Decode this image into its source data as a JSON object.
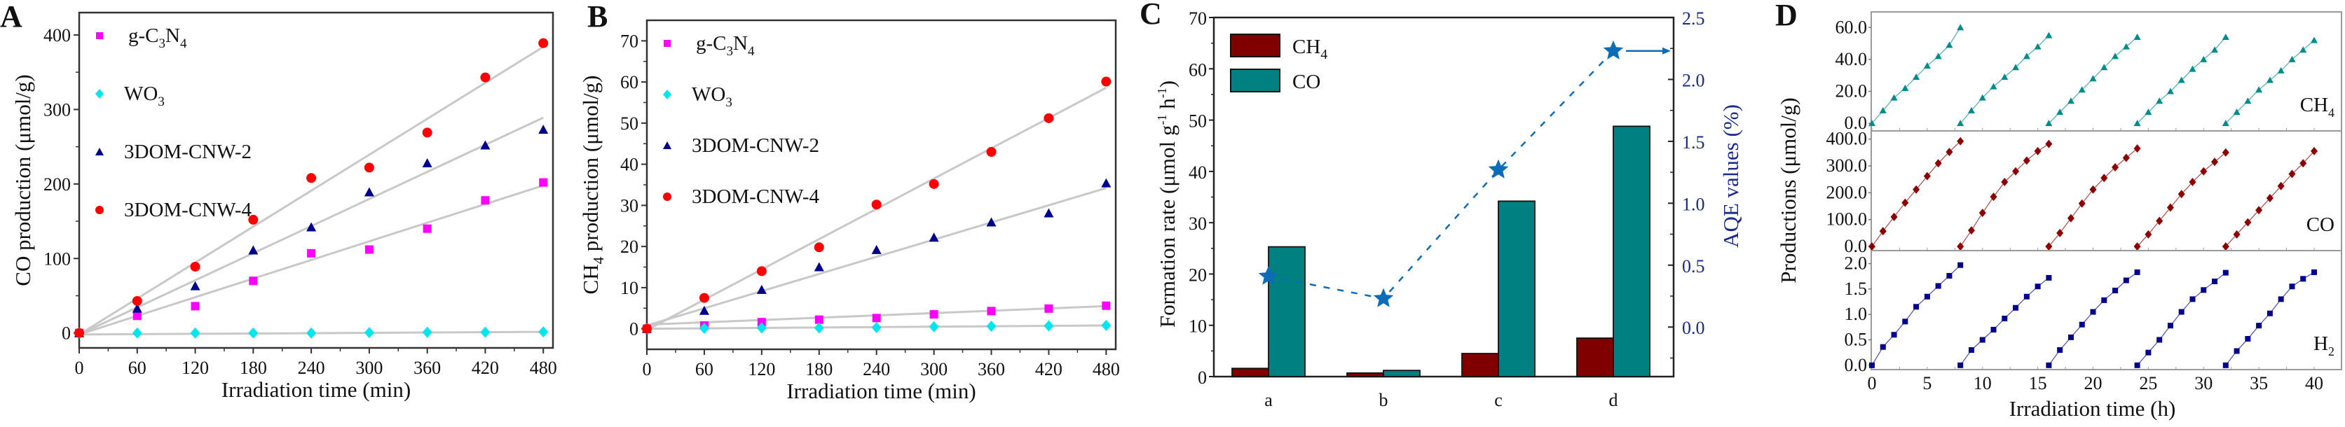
{
  "chart_data": [
    {
      "id": "A",
      "type": "scatter",
      "panel_label": "A",
      "title": "",
      "xlabel": "Irradiation time (min)",
      "ylabel": "CO production (μmol/g)",
      "xlim": [
        0,
        490
      ],
      "ylim": [
        -20,
        430
      ],
      "x_ticks": [
        0,
        60,
        120,
        180,
        240,
        300,
        360,
        420,
        480
      ],
      "y_ticks": [
        0,
        100,
        200,
        300,
        400
      ],
      "legend_position": "top-left",
      "fit_lines": true,
      "x": [
        0,
        60,
        120,
        180,
        240,
        300,
        360,
        420,
        480
      ],
      "series": [
        {
          "name": "g-C3N4",
          "display": [
            "g-C",
            "3",
            "N",
            "4"
          ],
          "marker": "square",
          "color": "#ff00ff",
          "values": [
            0,
            23,
            36,
            70,
            107,
            112,
            140,
            178,
            202
          ],
          "fit_end": 198
        },
        {
          "name": "WO3",
          "display": [
            "WO",
            "3"
          ],
          "marker": "diamond",
          "color": "#00e5ee",
          "values": [
            0,
            0,
            0,
            0,
            0,
            0.5,
            1,
            1,
            1.5
          ],
          "fit_end": 1.5
        },
        {
          "name": "3DOM-CNW-2",
          "display": [
            "3DOM-CNW-2"
          ],
          "marker": "triangle",
          "color": "#00008b",
          "values": [
            0,
            33,
            63,
            111,
            142,
            189,
            228,
            252,
            273
          ],
          "fit_end": 289
        },
        {
          "name": "3DOM-CNW-4",
          "display": [
            "3DOM-CNW-4"
          ],
          "marker": "circle",
          "color": "#ff0000",
          "values": [
            0,
            43,
            89,
            152,
            208,
            222,
            269,
            343,
            389
          ],
          "fit_end": 384
        }
      ]
    },
    {
      "id": "B",
      "type": "scatter",
      "panel_label": "B",
      "title": "",
      "xlabel": "Irradiation time (min)",
      "ylabel_parts": [
        "CH",
        "4",
        " production (μmol/g)"
      ],
      "ylabel": "CH4 production (μmol/g)",
      "xlim": [
        0,
        490
      ],
      "ylim": [
        -5,
        75
      ],
      "x_ticks": [
        0,
        60,
        120,
        180,
        240,
        300,
        360,
        420,
        480
      ],
      "y_ticks": [
        0,
        10,
        20,
        30,
        40,
        50,
        60,
        70
      ],
      "legend_position": "top-left",
      "fit_lines": true,
      "x": [
        0,
        60,
        120,
        180,
        240,
        300,
        360,
        420,
        480
      ],
      "series": [
        {
          "name": "g-C3N4",
          "display": [
            "g-C",
            "3",
            "N",
            "4"
          ],
          "marker": "square",
          "color": "#ff00ff",
          "values": [
            0,
            0.8,
            1.6,
            2.2,
            2.6,
            3.5,
            4.3,
            4.9,
            5.6
          ],
          "fit_start": 1.0,
          "fit_end": 5.5
        },
        {
          "name": "WO3",
          "display": [
            "WO",
            "3"
          ],
          "marker": "diamond",
          "color": "#00e5ee",
          "values": [
            0,
            0.1,
            0.2,
            0.2,
            0.3,
            0.5,
            0.6,
            0.7,
            0.8
          ],
          "fit_start": 0,
          "fit_end": 0.8
        },
        {
          "name": "3DOM-CNW-2",
          "display": [
            "3DOM-CNW-2"
          ],
          "marker": "triangle",
          "color": "#00008b",
          "values": [
            0,
            4.4,
            9.5,
            15.0,
            19.2,
            22.2,
            25.9,
            28.1,
            35.4
          ],
          "fit_start": 0.8,
          "fit_end": 34.2
        },
        {
          "name": "3DOM-CNW-4",
          "display": [
            "3DOM-CNW-4"
          ],
          "marker": "circle",
          "color": "#ff0000",
          "values": [
            0,
            7.5,
            14.0,
            19.8,
            30.2,
            35.2,
            43.0,
            51.2,
            60.1
          ],
          "fit_start": -0.3,
          "fit_end": 58.6
        }
      ]
    },
    {
      "id": "C",
      "type": "bar",
      "panel_label": "C",
      "title": "",
      "xlabel": "",
      "ylabel": "Formation rate (μmol g⁻¹ h⁻¹)",
      "ylabel_parts": [
        "Formation rate (μmol g",
        "-1",
        " h",
        "-1",
        ")"
      ],
      "y2label": "AQE values (%)",
      "categories": [
        "a",
        "b",
        "c",
        "d"
      ],
      "ylim": [
        0,
        70
      ],
      "y_ticks": [
        0,
        10,
        20,
        30,
        40,
        50,
        60,
        70
      ],
      "y2lim": [
        -0.4,
        2.5
      ],
      "y2_ticks": [
        0.0,
        0.5,
        1.0,
        1.5,
        2.0,
        2.5
      ],
      "y2_tick_labels": [
        "0.0",
        "0.5",
        "1.0",
        "1.5",
        "2.0",
        "2.5"
      ],
      "legend_position": "top-left",
      "series": [
        {
          "name": "CH4",
          "display": [
            "CH",
            "4"
          ],
          "color": "#800000",
          "values": [
            1.6,
            0.7,
            4.5,
            7.5
          ]
        },
        {
          "name": "CO",
          "display": [
            "CO"
          ],
          "color": "#008080",
          "values": [
            25.3,
            1.2,
            34.2,
            48.8
          ]
        }
      ],
      "line_series": {
        "name": "AQE",
        "axis": "right",
        "marker": "star",
        "linestyle": "dashed",
        "color": "#0b6cb8",
        "values": [
          0.41,
          0.23,
          1.27,
          2.23
        ]
      },
      "annotation": "arrow pointing to right axis"
    },
    {
      "id": "D",
      "type": "line",
      "panel_label": "D",
      "title": "",
      "xlabel": "Irradiation time (h)",
      "ylabel": "Productions (μmol/g)",
      "xlim": [
        0,
        42
      ],
      "x_ticks": [
        0,
        5,
        10,
        15,
        20,
        25,
        30,
        35,
        40
      ],
      "cycles": 5,
      "hours_per_cycle": 8,
      "subplots": [
        {
          "name": "CH4",
          "display": [
            "CH",
            "4"
          ],
          "marker": "triangle",
          "color": "#008b8b",
          "ylim": [
            -3,
            68
          ],
          "y_ticks": [
            0,
            20,
            40,
            60
          ],
          "y_tick_labels": [
            "0.0",
            "20.0",
            "40.0",
            "60.0"
          ],
          "cycle_values": [
            [
              0,
              8,
              16,
              22,
              29,
              36,
              42,
              49,
              60
            ],
            [
              0,
              8,
              16,
              23,
              29,
              35,
              42,
              48,
              55
            ],
            [
              0,
              7,
              14,
              21,
              28,
              35,
              42,
              48,
              54
            ],
            [
              0,
              7,
              14,
              20,
              27,
              34,
              40,
              46,
              54
            ],
            [
              0,
              7,
              14,
              21,
              27,
              33,
              40,
              46,
              52
            ]
          ]
        },
        {
          "name": "CO",
          "display": [
            "CO"
          ],
          "marker": "diamond",
          "color": "#8b0000",
          "ylim": [
            -5,
            420
          ],
          "y_ticks": [
            0,
            100,
            200,
            300,
            400
          ],
          "y_tick_labels": [
            "0.0",
            "100.0",
            "200.0",
            "300.0",
            "400.0"
          ],
          "cycle_values": [
            [
              0,
              57,
              110,
              163,
              212,
              262,
              310,
              352,
              392
            ],
            [
              0,
              60,
              125,
              185,
              240,
              280,
              320,
              355,
              382
            ],
            [
              0,
              50,
              105,
              160,
              212,
              255,
              295,
              330,
              365
            ],
            [
              0,
              45,
              95,
              145,
              195,
              240,
              280,
              315,
              350
            ],
            [
              0,
              45,
              90,
              135,
              180,
              225,
              270,
              310,
              355
            ]
          ]
        },
        {
          "name": "H2",
          "display": [
            "H",
            "2"
          ],
          "marker": "square",
          "color": "#00008b",
          "ylim": [
            -0.03,
            2.2
          ],
          "y_ticks": [
            0,
            0.5,
            1.0,
            1.5,
            2.0
          ],
          "y_tick_labels": [
            "0.0",
            "0.5",
            "1.0",
            "1.5",
            "2.0"
          ],
          "cycle_values": [
            [
              0,
              0.36,
              0.6,
              0.86,
              1.15,
              1.35,
              1.56,
              1.76,
              1.97
            ],
            [
              0,
              0.3,
              0.5,
              0.7,
              0.92,
              1.13,
              1.35,
              1.55,
              1.72
            ],
            [
              0,
              0.3,
              0.55,
              0.8,
              1.05,
              1.28,
              1.47,
              1.67,
              1.83
            ],
            [
              0,
              0.25,
              0.5,
              0.78,
              1.05,
              1.3,
              1.48,
              1.65,
              1.82
            ],
            [
              0,
              0.28,
              0.52,
              0.78,
              1.02,
              1.3,
              1.55,
              1.7,
              1.83
            ]
          ]
        }
      ]
    }
  ]
}
